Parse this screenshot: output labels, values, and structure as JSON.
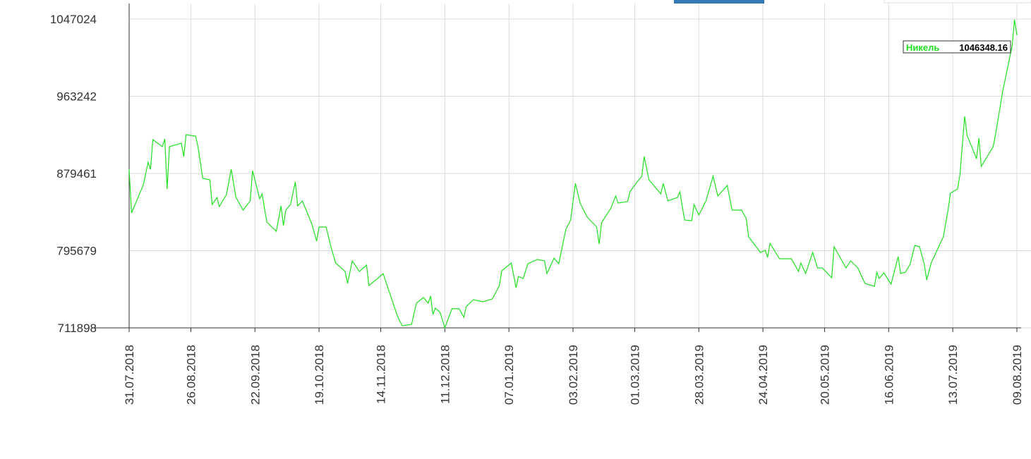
{
  "chart_data": {
    "type": "line",
    "x": [
      "31.07.2018",
      "01.08.2018",
      "04.08.2018",
      "06.08.2018",
      "08.08.2018",
      "09.08.2018",
      "10.08.2018",
      "14.08.2018",
      "15.08.2018",
      "16.08.2018",
      "17.08.2018",
      "22.08.2018",
      "23.08.2018",
      "24.08.2018",
      "28.08.2018",
      "29.08.2018",
      "31.08.2018",
      "03.09.2018",
      "04.09.2018",
      "06.09.2018",
      "07.09.2018",
      "10.09.2018",
      "12.09.2018",
      "14.09.2018",
      "17.09.2018",
      "20.09.2018",
      "21.09.2018",
      "24.09.2018",
      "25.09.2018",
      "27.09.2018",
      "01.10.2018",
      "03.10.2018",
      "04.10.2018",
      "05.10.2018",
      "07.10.2018",
      "09.10.2018",
      "10.10.2018",
      "12.10.2018",
      "16.10.2018",
      "18.10.2018",
      "19.10.2018",
      "22.10.2018",
      "24.10.2018",
      "26.10.2018",
      "30.10.2018",
      "31.10.2018",
      "02.11.2018",
      "05.11.2018",
      "08.11.2018",
      "09.11.2018",
      "13.11.2018",
      "15.11.2018",
      "21.11.2018",
      "23.11.2018",
      "27.11.2018",
      "29.11.2018",
      "02.12.2018",
      "04.12.2018",
      "05.12.2018",
      "06.12.2018",
      "07.12.2018",
      "09.12.2018",
      "11.12.2018",
      "14.12.2018",
      "17.12.2018",
      "19.12.2018",
      "20.12.2018",
      "23.12.2018",
      "27.12.2018",
      "31.12.2018",
      "03.01.2019",
      "04.01.2019",
      "08.01.2019",
      "10.01.2019",
      "11.01.2019",
      "13.01.2019",
      "15.01.2019",
      "19.01.2019",
      "22.01.2019",
      "23.01.2019",
      "26.01.2019",
      "28.01.2019",
      "31.01.2019",
      "02.02.2019",
      "04.02.2019",
      "06.02.2019",
      "09.02.2019",
      "13.02.2019",
      "14.02.2019",
      "15.02.2019",
      "19.02.2019",
      "21.02.2019",
      "22.02.2019",
      "26.02.2019",
      "27.02.2019",
      "02.03.2019",
      "04.03.2019",
      "05.03.2019",
      "07.03.2019",
      "12.03.2019",
      "13.03.2019",
      "15.03.2019",
      "19.03.2019",
      "20.03.2019",
      "22.03.2019",
      "25.03.2019",
      "26.03.2019",
      "28.03.2019",
      "31.03.2019",
      "03.04.2019",
      "05.04.2019",
      "09.04.2019",
      "11.04.2019",
      "15.04.2019",
      "17.04.2019",
      "18.04.2019",
      "23.04.2019",
      "25.04.2019",
      "26.04.2019",
      "27.04.2019",
      "01.05.2019",
      "06.05.2019",
      "09.05.2019",
      "10.05.2019",
      "12.05.2019",
      "15.05.2019",
      "17.05.2019",
      "19.05.2019",
      "23.05.2019",
      "24.05.2019",
      "29.05.2019",
      "31.05.2019",
      "03.06.2019",
      "06.06.2019",
      "10.06.2019",
      "11.06.2019",
      "12.06.2019",
      "14.06.2019",
      "17.06.2019",
      "20.06.2019",
      "21.06.2019",
      "23.06.2019",
      "25.06.2019",
      "27.06.2019",
      "29.06.2019",
      "01.07.2019",
      "02.07.2019",
      "04.07.2019",
      "09.07.2019",
      "11.07.2019",
      "12.07.2019",
      "15.07.2019",
      "16.07.2019",
      "18.07.2019",
      "19.07.2019",
      "23.07.2019",
      "24.07.2019",
      "25.07.2019",
      "30.07.2019",
      "31.07.2019",
      "03.08.2019",
      "07.08.2019",
      "08.08.2019",
      "09.08.2019"
    ],
    "series": [
      {
        "name": "Никель",
        "color": "#22e022",
        "values": [
          884000,
          836600,
          855000,
          867200,
          891700,
          884000,
          916200,
          908500,
          916900,
          862600,
          908500,
          912300,
          897800,
          921500,
          920000,
          908500,
          874100,
          872600,
          845800,
          853400,
          843500,
          856500,
          884000,
          853400,
          839700,
          849600,
          882500,
          851900,
          857300,
          826700,
          816700,
          844300,
          822800,
          839700,
          845800,
          870300,
          844300,
          849600,
          824400,
          806000,
          821300,
          821300,
          799900,
          782300,
          773100,
          760100,
          784600,
          773100,
          780000,
          757800,
          766200,
          770800,
          724900,
          714200,
          715700,
          738700,
          744800,
          738700,
          746300,
          726400,
          733300,
          728700,
          711900,
          732600,
          732600,
          723400,
          734900,
          742500,
          740200,
          743300,
          757800,
          773900,
          782300,
          755500,
          767700,
          765500,
          781500,
          786100,
          784600,
          770800,
          787600,
          781500,
          819000,
          828900,
          868700,
          847300,
          832000,
          821300,
          802900,
          825900,
          842000,
          855000,
          847300,
          848900,
          859600,
          870300,
          876400,
          897800,
          872600,
          857300,
          868700,
          849600,
          853400,
          859600,
          828900,
          828200,
          845800,
          834300,
          849600,
          876400,
          855000,
          866400,
          839700,
          839700,
          830500,
          810600,
          793800,
          796100,
          788400,
          803700,
          786900,
          786900,
          773100,
          782300,
          770800,
          793800,
          776900,
          776900,
          766200,
          799900,
          776900,
          784600,
          776900,
          760100,
          757000,
          772300,
          765500,
          771600,
          759300,
          789200,
          770800,
          772300,
          780800,
          801400,
          799900,
          780800,
          763900,
          783000,
          810600,
          839700,
          858000,
          862600,
          877900,
          941400,
          920800,
          895500,
          917700,
          887100,
          908500,
          921500,
          968200,
          1017900,
          1046348.16,
          1029400
        ]
      }
    ],
    "xlim": [
      "31.07.2018",
      "09.08.2019"
    ],
    "xticks": [
      "31.07.2018",
      "26.08.2018",
      "22.09.2018",
      "19.10.2018",
      "14.11.2018",
      "11.12.2018",
      "07.01.2019",
      "03.02.2019",
      "01.03.2019",
      "28.03.2019",
      "24.04.2019",
      "20.05.2019",
      "16.06.2019",
      "13.07.2019",
      "09.08.2019"
    ],
    "ylim": [
      711898,
      1047024
    ],
    "yticks": [
      711898,
      795679,
      879461,
      963242,
      1047024
    ],
    "grid": true
  }
}
